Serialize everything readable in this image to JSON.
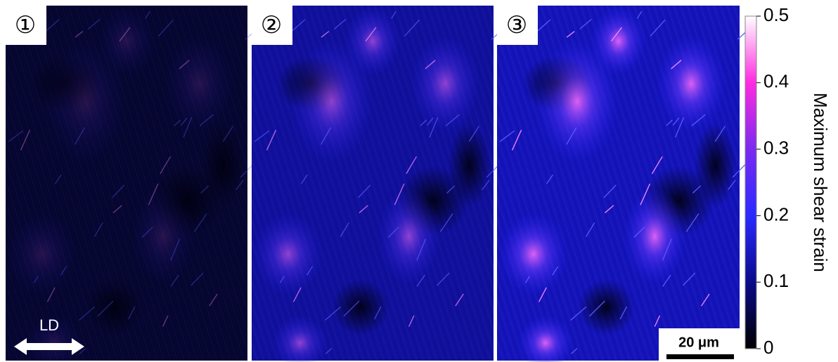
{
  "panels": [
    {
      "label": "①"
    },
    {
      "label": "②"
    },
    {
      "label": "③"
    }
  ],
  "annotations": {
    "direction": "LD",
    "scale_bar": "20 μm"
  },
  "colorbar": {
    "label": "Maximum shear strain",
    "lim": [
      0,
      0.5
    ],
    "ticks": [
      0,
      0.1,
      0.2,
      0.3,
      0.4,
      0.5
    ]
  }
}
